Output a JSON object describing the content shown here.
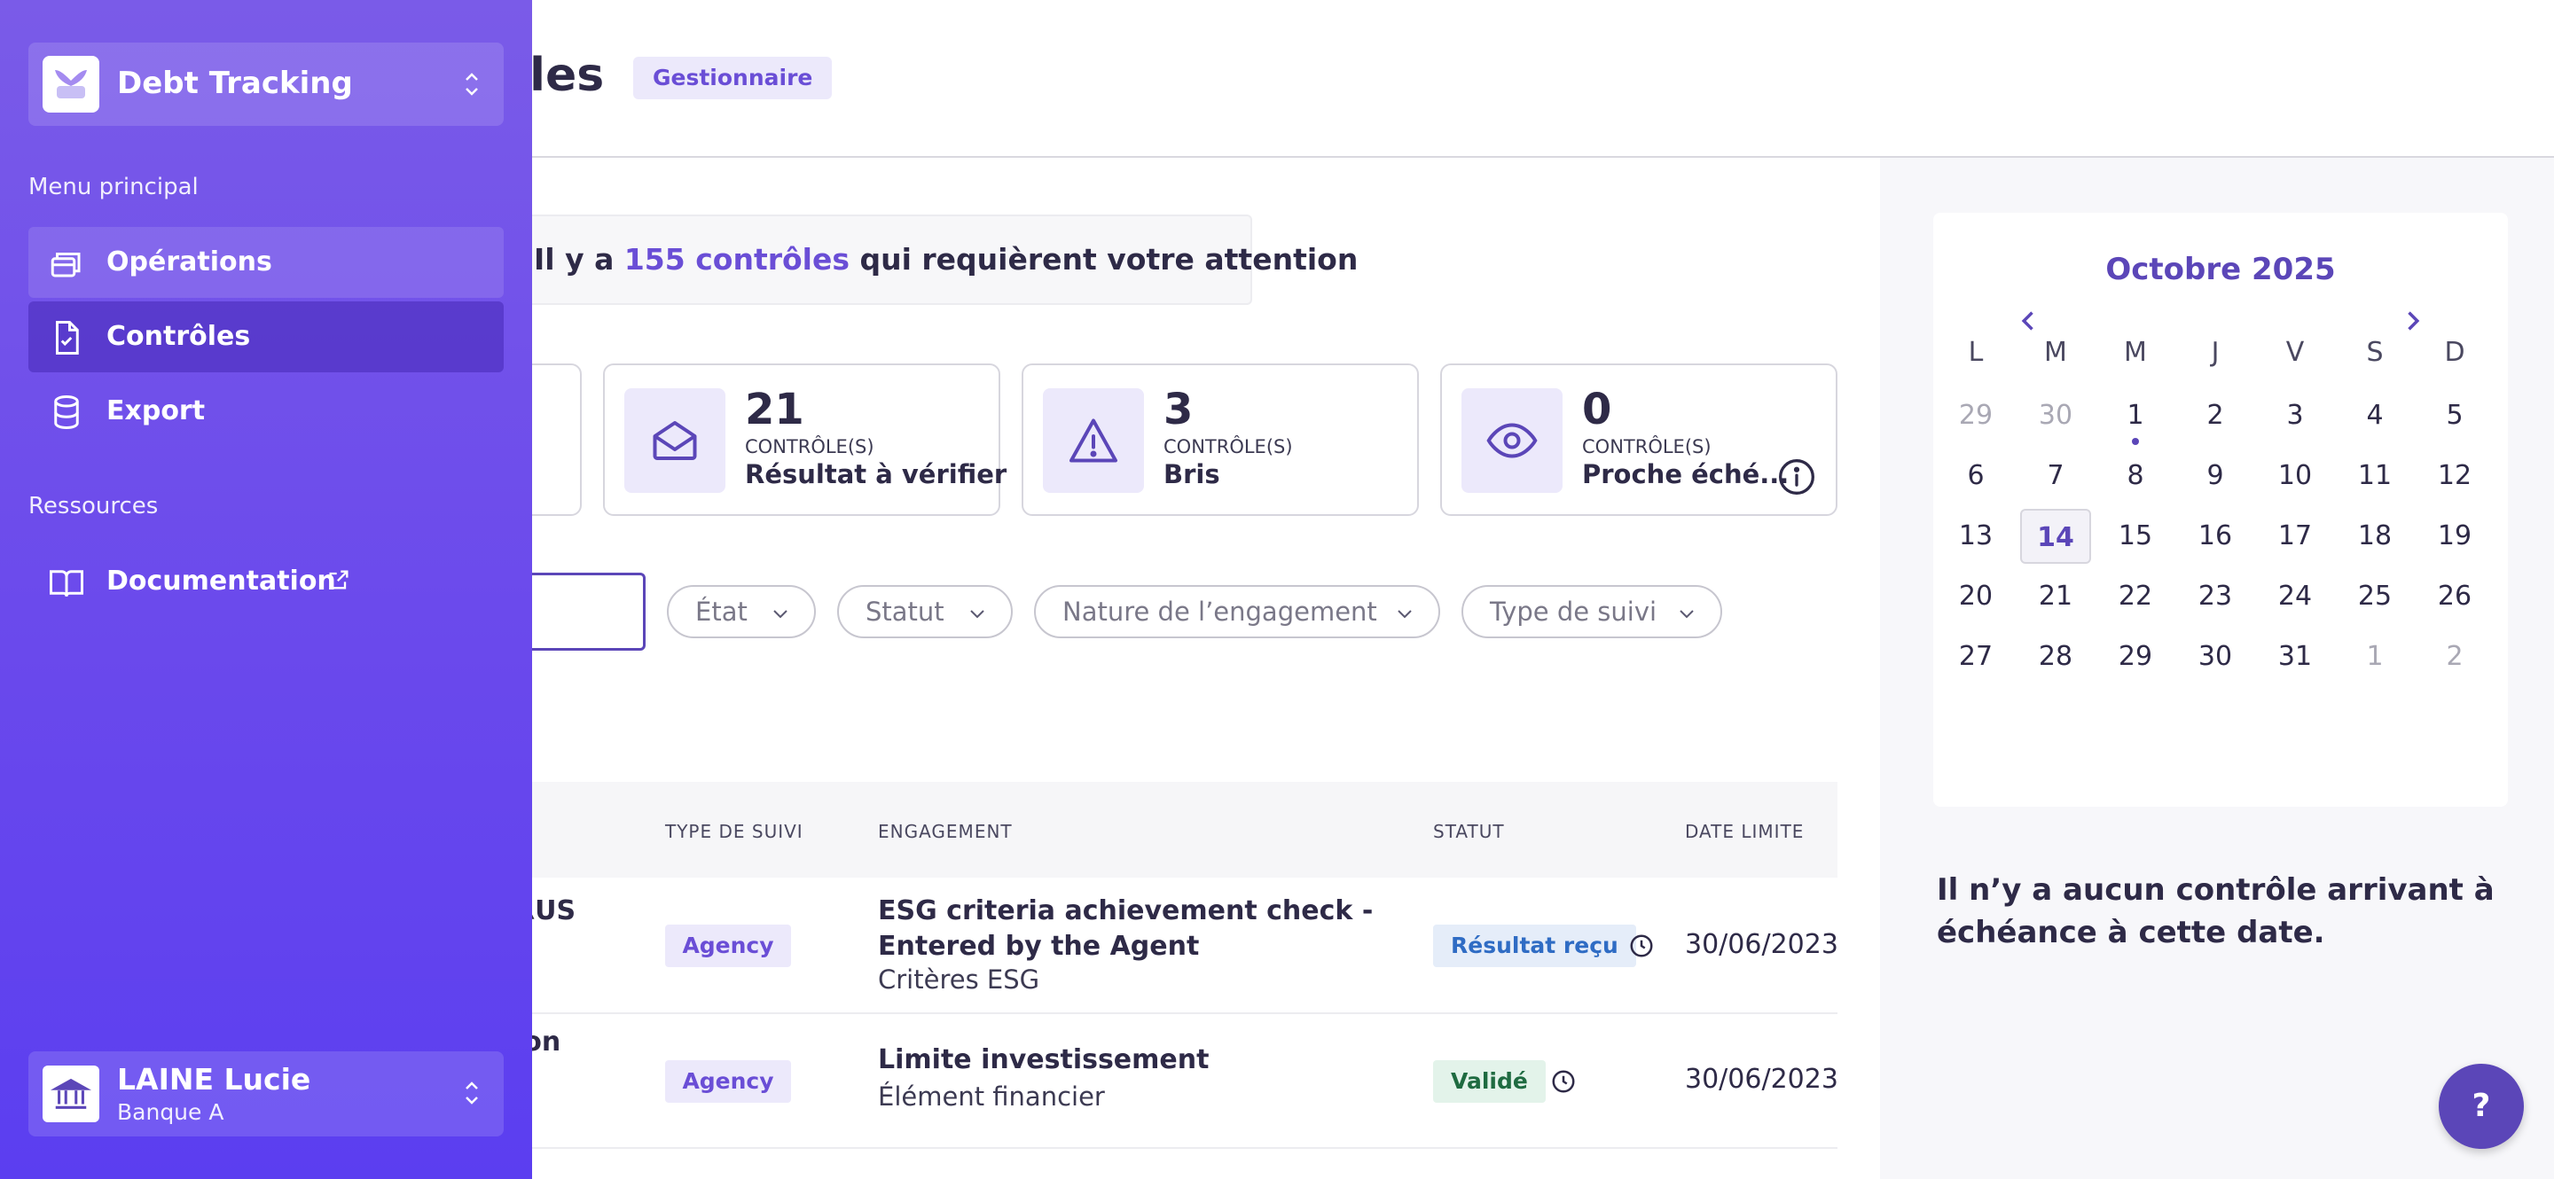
{
  "app": {
    "name": "Debt Tracking"
  },
  "header": {
    "title": "Contrôles",
    "role_badge": "Gestionnaire"
  },
  "attention": {
    "prefix": "Il y a ",
    "highlight": "155 contrôles",
    "suffix": " qui requièrent votre attention"
  },
  "stats": [
    {
      "number": "21",
      "unit": "CONTRÔLE(S)",
      "label": "Résultat à vérifier",
      "icon": "envelope-open-icon"
    },
    {
      "number": "3",
      "unit": "CONTRÔLE(S)",
      "label": "Bris",
      "icon": "warning-triangle-icon"
    },
    {
      "number": "0",
      "unit": "CONTRÔLE(S)",
      "label": "Proche éché...",
      "icon": "eye-icon"
    }
  ],
  "filters": [
    "État",
    "Statut",
    "Nature de l’engagement",
    "Type de suivi"
  ],
  "table": {
    "headers": {
      "type": "TYPE DE SUIVI",
      "engagement": "ENGAGEMENT",
      "status": "STATUT",
      "deadline": "DATE LIMITE"
    },
    "rows": [
      {
        "name": "RUS",
        "type": "Agency",
        "title_line1": "ESG criteria achievement check -",
        "title_line2": "Entered by the Agent",
        "subtitle": "Critères ESG",
        "status": "Résultat reçu",
        "deadline": "30/06/2023"
      },
      {
        "name": "ion",
        "type": "Agency",
        "title_line1": "Limite investissement",
        "subtitle": "Élément financier",
        "status": "Validé",
        "deadline": "30/06/2023"
      }
    ]
  },
  "sidebar": {
    "main_label": "Menu principal",
    "items": [
      {
        "label": "Opérations",
        "icon": "briefcase-stack-icon"
      },
      {
        "label": "Contrôles",
        "icon": "document-check-icon"
      },
      {
        "label": "Export",
        "icon": "database-icon"
      }
    ],
    "resources_label": "Ressources",
    "resources": [
      {
        "label": "Documentation",
        "icon": "book-open-icon"
      }
    ]
  },
  "user": {
    "name": "LAINE Lucie",
    "org": "Banque A"
  },
  "calendar": {
    "title": "Octobre 2025",
    "weekdays": [
      "L",
      "M",
      "M",
      "J",
      "V",
      "S",
      "D"
    ],
    "weeks": [
      [
        "29",
        "30",
        "1",
        "2",
        "3",
        "4",
        "5"
      ],
      [
        "6",
        "7",
        "8",
        "9",
        "10",
        "11",
        "12"
      ],
      [
        "13",
        "14",
        "15",
        "16",
        "17",
        "18",
        "19"
      ],
      [
        "20",
        "21",
        "22",
        "23",
        "24",
        "25",
        "26"
      ],
      [
        "27",
        "28",
        "29",
        "30",
        "31",
        "1",
        "2"
      ]
    ],
    "today": "14"
  },
  "empty_message": "Il n’y a aucun contrôle arrivant à échéance à cette date.",
  "help": {
    "label": "?"
  },
  "colors": {
    "accent": "#5b46b8",
    "sidebar": "#6a49ec",
    "badge_bg": "#ece9fb"
  }
}
